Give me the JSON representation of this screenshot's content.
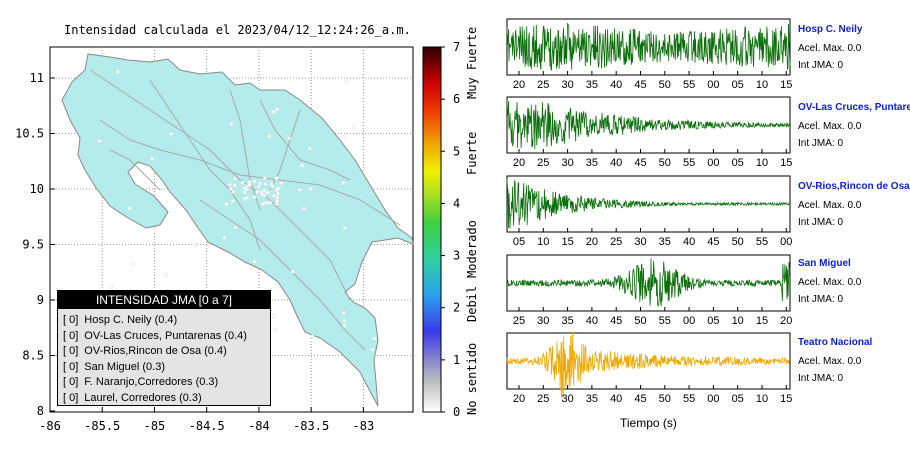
{
  "map": {
    "title": "Intensidad calculada el 2023/04/12_12:24:26_a.m.",
    "x_ticks": [
      "-86",
      "-85.5",
      "-85",
      "-84.5",
      "-84",
      "-83.5",
      "-83"
    ],
    "y_ticks": [
      "11",
      "10.5",
      "10",
      "9.5",
      "9",
      "8.5",
      "8"
    ],
    "land_color": "#b4ecec"
  },
  "colorbar": {
    "ticks": [
      "7",
      "6",
      "5",
      "4",
      "3",
      "2",
      "1",
      "0"
    ],
    "words": [
      "Muy Fuerte",
      "Fuerte",
      "Moderado",
      "Debil",
      "No sentido"
    ]
  },
  "legend": {
    "title": "INTENSIDAD JMA [0 a 7]",
    "rows": [
      {
        "badge": "[ 0]",
        "text": "Hosp C. Neily (0.4)"
      },
      {
        "badge": "[ 0]",
        "text": "OV-Las Cruces, Puntarenas (0.4)"
      },
      {
        "badge": "[ 0]",
        "text": "OV-Rios,Rincon de Osa (0.4)"
      },
      {
        "badge": "[ 0]",
        "text": "San Miguel (0.3)"
      },
      {
        "badge": "[ 0]",
        "text": "F. Naranjo,Corredores (0.3)"
      },
      {
        "badge": "[ 0]",
        "text": "Laurel, Corredores (0.3)"
      }
    ]
  },
  "stations": [
    {
      "name": "Hosp C. Neily",
      "acel": "Acel. Max. 0.0",
      "int": "Int JMA: 0",
      "color": "#0a6e0a",
      "ticks": [
        "20",
        "25",
        "30",
        "35",
        "40",
        "45",
        "50",
        "55",
        "00",
        "05",
        "10",
        "15"
      ]
    },
    {
      "name": "OV-Las Cruces, Puntarenas",
      "acel": "Acel. Max. 0.0",
      "int": "Int JMA: 0",
      "color": "#0a6e0a",
      "ticks": [
        "20",
        "25",
        "30",
        "35",
        "40",
        "45",
        "50",
        "55",
        "00",
        "05",
        "10",
        "15"
      ]
    },
    {
      "name": "OV-Rios,Rincon de Osa",
      "acel": "Acel. Max. 0.0",
      "int": "Int JMA: 0",
      "color": "#0a6e0a",
      "ticks": [
        "05",
        "10",
        "15",
        "20",
        "25",
        "30",
        "35",
        "40",
        "45",
        "50",
        "55",
        "00"
      ]
    },
    {
      "name": "San Miguel",
      "acel": "Acel. Max. 0.0",
      "int": "Int JMA: 0",
      "color": "#0a6e0a",
      "ticks": [
        "25",
        "30",
        "35",
        "40",
        "45",
        "50",
        "55",
        "00",
        "05",
        "10",
        "15",
        "20"
      ]
    },
    {
      "name": "Teatro Nacional",
      "acel": "Acel. Max. 0.0",
      "int": "Int JMA: 0",
      "color": "#f0a800",
      "ticks": [
        "20",
        "25",
        "30",
        "35",
        "40",
        "45",
        "50",
        "55",
        "00",
        "05",
        "10",
        "15"
      ]
    }
  ],
  "waveforms": {
    "xlabel": "Tiempo (s)"
  }
}
